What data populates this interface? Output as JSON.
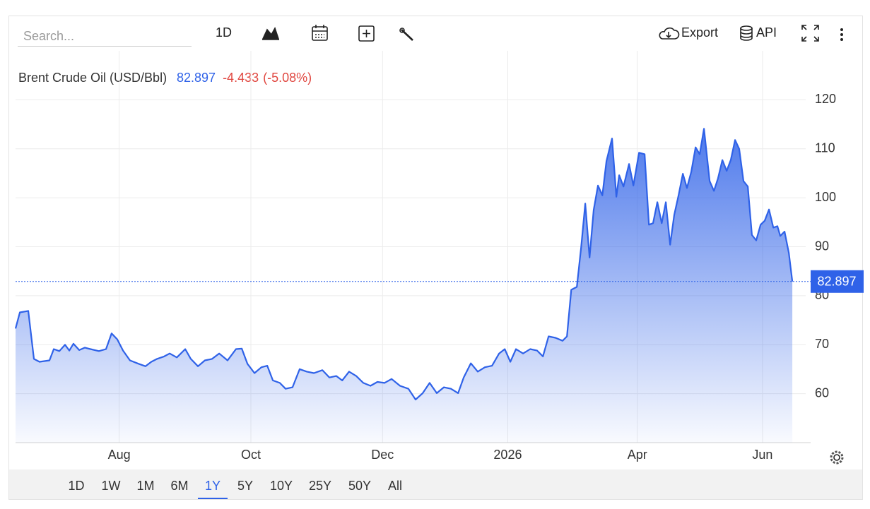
{
  "toolbar": {
    "search_placeholder": "Search...",
    "interval": "1D",
    "export": "Export",
    "api": "API"
  },
  "ranges": {
    "items": [
      "1D",
      "1W",
      "1M",
      "6M",
      "1Y",
      "5Y",
      "10Y",
      "25Y",
      "50Y",
      "All"
    ],
    "selected": 4
  },
  "chart_data": {
    "type": "area",
    "title": "Brent Crude Oil (USD/Bbl)",
    "change": "-4.433",
    "change_pct": "(-5.08%)",
    "color": "#2f62e8",
    "x": [
      0,
      2.0,
      5.9,
      8.5,
      11.1,
      15.7,
      17.7,
      20.3,
      22.9,
      24.9,
      26.8,
      29.5,
      32.1,
      34.7,
      38.6,
      41.9,
      44.5,
      47.1,
      49.8,
      53.0,
      57.0,
      60.2,
      62.9,
      65.5,
      68.8,
      71.4,
      74.7,
      78.6,
      81.2,
      84.5,
      87.7,
      91.0,
      94.3,
      98.2,
      102.1,
      104.8,
      107.4,
      110.7,
      113.9,
      116.6,
      119.2,
      122.4,
      125.1,
      128.3,
      131.6,
      134.9,
      138.2,
      142.1,
      145.4,
      148.6,
      151.3,
      154.5,
      157.8,
      161.1,
      164.4,
      167.6,
      170.9,
      174.2,
      178.1,
      182.0,
      185.3,
      188.6,
      191.8,
      195.1,
      198.4,
      201.7,
      205.0,
      207.6,
      210.9,
      214.1,
      217.4,
      220.7,
      224.0,
      226.6,
      229.2,
      231.8,
      235.1,
      238.4,
      241.6,
      244.3,
      246.9,
      250.1,
      253.4,
      255.4,
      257.4,
      260.0,
      262.0,
      263.9,
      265.9,
      267.8,
      269.8,
      271.8,
      273.7,
      276.3,
      278.3,
      279.6,
      281.6,
      284.2,
      286.2,
      288.8,
      291.4,
      293.4,
      295.3,
      297.3,
      299.3,
      301.2,
      303.2,
      305.1,
      307.1,
      309.1,
      311.0,
      313.0,
      315.0,
      316.9,
      318.9,
      321.5,
      323.5,
      325.4,
      327.4,
      329.4,
      331.3,
      333.3,
      335.2,
      337.2,
      339.2,
      341.1,
      343.1,
      345.1,
      347.0,
      349.0,
      351.0,
      352.9,
      354.2,
      356.2,
      358.2,
      359.8
    ],
    "values": [
      73.3,
      76.6,
      76.9,
      67.1,
      66.5,
      66.8,
      69.1,
      68.7,
      70.0,
      68.8,
      70.2,
      68.9,
      69.4,
      69.1,
      68.7,
      69.1,
      72.3,
      71.1,
      68.8,
      66.8,
      66.1,
      65.6,
      66.5,
      67.1,
      67.6,
      68.2,
      67.4,
      69.1,
      67.1,
      65.6,
      66.8,
      67.1,
      68.2,
      66.8,
      69.1,
      69.2,
      66.1,
      64.2,
      65.4,
      65.7,
      62.7,
      62.2,
      61.0,
      61.3,
      65.0,
      64.5,
      64.2,
      64.8,
      63.3,
      63.6,
      62.7,
      64.5,
      63.6,
      62.2,
      61.6,
      62.4,
      62.2,
      63.0,
      61.6,
      61.0,
      58.8,
      60.1,
      62.2,
      60.1,
      61.3,
      61.0,
      60.1,
      63.3,
      66.2,
      64.5,
      65.4,
      65.7,
      68.2,
      69.1,
      66.5,
      69.1,
      68.2,
      69.1,
      68.8,
      67.6,
      71.7,
      71.4,
      70.8,
      71.7,
      81.2,
      81.8,
      89.9,
      98.8,
      87.8,
      97.5,
      102.5,
      100.5,
      107.5,
      112.1,
      100.2,
      104.6,
      102.3,
      106.9,
      102.5,
      109.2,
      108.9,
      94.5,
      94.8,
      99.1,
      94.8,
      99.1,
      90.4,
      96.5,
      100.5,
      104.9,
      102.0,
      105.3,
      110.3,
      108.9,
      114.1,
      103.4,
      101.4,
      104.0,
      107.7,
      105.5,
      107.7,
      111.8,
      110.0,
      103.4,
      102.3,
      92.4,
      91.3,
      94.5,
      95.3,
      97.6,
      93.9,
      94.2,
      92.2,
      93.1,
      88.7,
      82.897
    ],
    "xlim": [
      0,
      366
    ],
    "xticks": [
      {
        "value": 48,
        "label": "Aug"
      },
      {
        "value": 109,
        "label": "Oct"
      },
      {
        "value": 170,
        "label": "Dec"
      },
      {
        "value": 228,
        "label": "2026"
      },
      {
        "value": 288,
        "label": "Apr"
      },
      {
        "value": 346,
        "label": "Jun"
      }
    ],
    "ylim": [
      50,
      130
    ],
    "yticks": [
      60,
      70,
      80,
      90,
      100,
      110,
      120
    ],
    "grid": true
  }
}
